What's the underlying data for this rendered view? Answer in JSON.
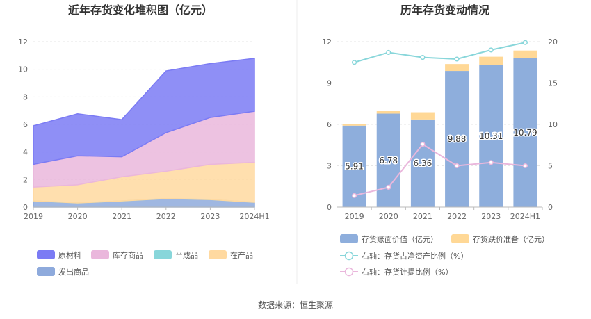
{
  "footer": {
    "source": "数据来源：恒生聚源"
  },
  "chart_data": [
    {
      "type": "area",
      "title": "近年存货变化堆积图（亿元）",
      "categories": [
        "2019",
        "2020",
        "2021",
        "2022",
        "2023",
        "2024H1"
      ],
      "ylim": [
        0,
        12
      ],
      "yticks": [
        "0",
        "2",
        "4",
        "6",
        "8",
        "10",
        "12"
      ],
      "stacked": true,
      "grid": true,
      "legend_position": "bottom",
      "series": [
        {
          "name": "发出商品",
          "color": "#8eaadc",
          "values": [
            0.45,
            0.3,
            0.45,
            0.62,
            0.55,
            0.35
          ]
        },
        {
          "name": "半成品",
          "color": "#88d6da",
          "values": [
            0,
            0,
            0,
            0,
            0,
            0
          ]
        },
        {
          "name": "在产品",
          "color": "#ffd9a0",
          "values": [
            1.0,
            1.32,
            1.75,
            1.98,
            2.55,
            2.9
          ]
        },
        {
          "name": "库存商品",
          "color": "#eab7dc",
          "values": [
            1.65,
            2.1,
            1.45,
            2.8,
            3.4,
            3.7
          ]
        },
        {
          "name": "原材料",
          "color": "#7b7bf4",
          "values": [
            2.8,
            3.05,
            2.7,
            4.48,
            3.91,
            3.84
          ]
        }
      ],
      "legend_order": [
        "原材料",
        "库存商品",
        "半成品",
        "在产品",
        "发出商品"
      ]
    },
    {
      "type": "bar",
      "title": "历年存货变动情况",
      "categories": [
        "2019",
        "2020",
        "2021",
        "2022",
        "2023",
        "2024H1"
      ],
      "ylim": [
        0,
        12
      ],
      "yticks": [
        "0",
        "3",
        "6",
        "9",
        "12"
      ],
      "y2lim": [
        0,
        20
      ],
      "y2ticks": [
        "0",
        "5",
        "10",
        "15",
        "20"
      ],
      "grid": true,
      "legend_position": "bottom",
      "bar_series": [
        {
          "name": "存货账面价值（亿元）",
          "color": "#8eaedc",
          "values": [
            5.91,
            6.78,
            6.36,
            9.88,
            10.31,
            10.79
          ],
          "labels": [
            "5.91",
            "6.78",
            "6.36",
            "9.88",
            "10.31",
            "10.79"
          ]
        },
        {
          "name": "存货跌价准备（亿元）",
          "color": "#ffd896",
          "values": [
            0.1,
            0.22,
            0.52,
            0.5,
            0.6,
            0.57
          ]
        }
      ],
      "line_series": [
        {
          "name": "右轴：存货占净资产比例（%）",
          "color": "#88d6da",
          "values": [
            17.5,
            18.7,
            18.1,
            17.9,
            19.0,
            19.9
          ]
        },
        {
          "name": "右轴：存货计提比例（%）",
          "color": "#eab7dc",
          "values": [
            1.4,
            2.4,
            7.6,
            5.0,
            5.4,
            5.0
          ]
        }
      ]
    }
  ]
}
